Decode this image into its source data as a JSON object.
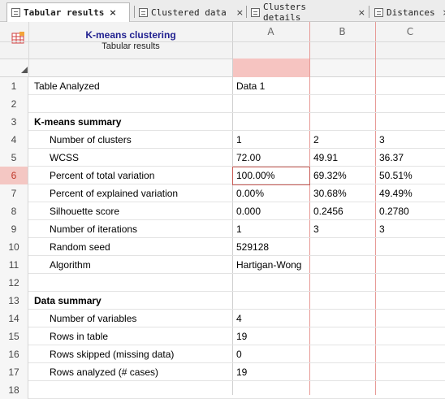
{
  "tabs": [
    {
      "label": "Tabular results",
      "active": true
    },
    {
      "label": "Clustered data",
      "active": false
    },
    {
      "label": "Clusters details",
      "active": false
    },
    {
      "label": "Distances",
      "active": false
    }
  ],
  "tab_close_glyph": "×",
  "header": {
    "title": "K-means clustering",
    "subtitle": "Tabular results",
    "icon": "table-icon",
    "columns": [
      "A",
      "B",
      "C"
    ]
  },
  "rows": [
    {
      "n": "1",
      "label": "Table Analyzed",
      "A": "Data 1",
      "B": "",
      "C": ""
    },
    {
      "n": "2",
      "label": "",
      "A": "",
      "B": "",
      "C": ""
    },
    {
      "n": "3",
      "label": "K-means summary",
      "A": "",
      "B": "",
      "C": ""
    },
    {
      "n": "4",
      "label": "Number of clusters",
      "A": "1",
      "B": "2",
      "C": "3"
    },
    {
      "n": "5",
      "label": "WCSS",
      "A": "72.00",
      "B": "49.91",
      "C": "36.37"
    },
    {
      "n": "6",
      "label": "Percent of total variation",
      "A": "100.00%",
      "B": "69.32%",
      "C": "50.51%"
    },
    {
      "n": "7",
      "label": "Percent of explained variation",
      "A": "0.00%",
      "B": "30.68%",
      "C": "49.49%"
    },
    {
      "n": "8",
      "label": "Silhouette score",
      "A": "0.000",
      "B": "0.2456",
      "C": "0.2780"
    },
    {
      "n": "9",
      "label": "Number of iterations",
      "A": "1",
      "B": "3",
      "C": "3"
    },
    {
      "n": "10",
      "label": "Random seed",
      "A": "529128",
      "B": "",
      "C": ""
    },
    {
      "n": "11",
      "label": "Algorithm",
      "A": "Hartigan-Wong",
      "B": "",
      "C": ""
    },
    {
      "n": "12",
      "label": "",
      "A": "",
      "B": "",
      "C": ""
    },
    {
      "n": "13",
      "label": "Data summary",
      "A": "",
      "B": "",
      "C": ""
    },
    {
      "n": "14",
      "label": "Number of variables",
      "A": "4",
      "B": "",
      "C": ""
    },
    {
      "n": "15",
      "label": "Rows in table",
      "A": "19",
      "B": "",
      "C": ""
    },
    {
      "n": "16",
      "label": "Rows skipped (missing data)",
      "A": "0",
      "B": "",
      "C": ""
    },
    {
      "n": "17",
      "label": "Rows analyzed (# cases)",
      "A": "19",
      "B": "",
      "C": ""
    },
    {
      "n": "18",
      "label": "",
      "A": "",
      "B": "",
      "C": ""
    }
  ],
  "selection": {
    "row": "6",
    "column": "A"
  },
  "colors": {
    "selection": "#c95b55",
    "selected_header": "#f6c4c1",
    "title": "#1f1f8f"
  }
}
